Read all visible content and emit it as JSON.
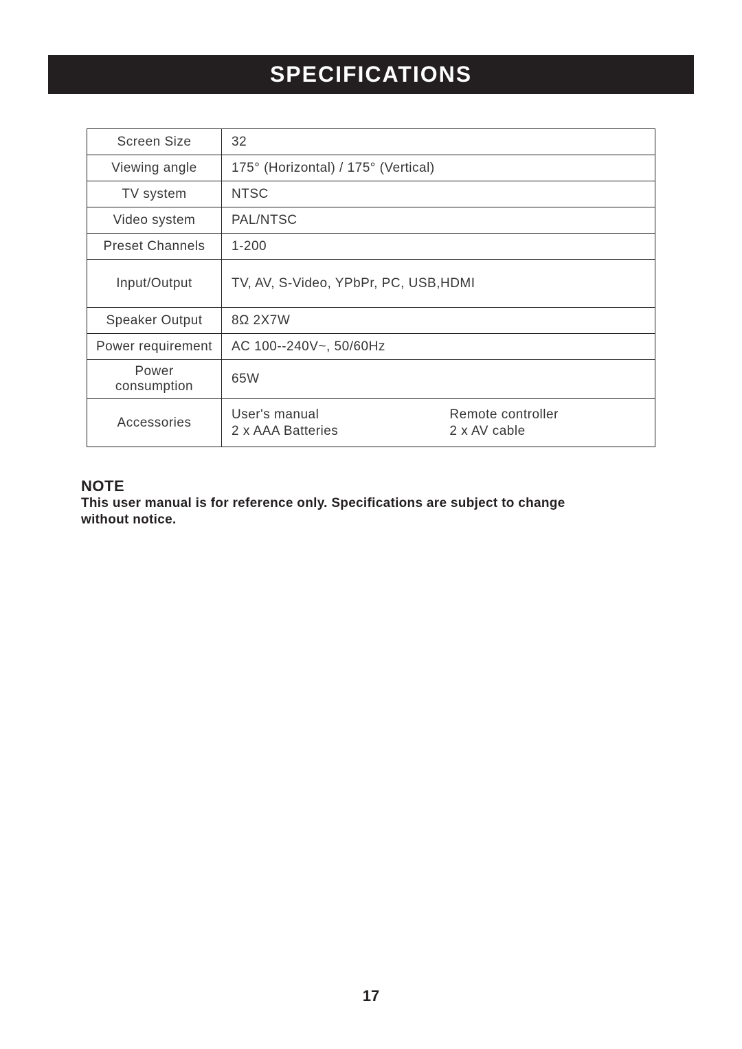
{
  "title": "SPECIFICATIONS",
  "table": {
    "border_color": "#231f20",
    "text_color": "#333333",
    "rows": [
      {
        "label": "Screen Size",
        "value": "32",
        "height": "normal"
      },
      {
        "label": "Viewing angle",
        "value": "175° (Horizontal) / 175° (Vertical)",
        "height": "normal"
      },
      {
        "label": "TV system",
        "value": "NTSC",
        "height": "normal"
      },
      {
        "label": "Video system",
        "value": "PAL/NTSC",
        "height": "normal"
      },
      {
        "label": "Preset Channels",
        "value": "1-200",
        "height": "normal"
      },
      {
        "label": "Input/Output",
        "value": "TV, AV, S-Video, YPbPr, PC, USB,HDMI",
        "height": "tall"
      },
      {
        "label": "Speaker Output",
        "value": "8Ω  2X7W",
        "height": "normal"
      },
      {
        "label": "Power requirement",
        "value": "AC 100--240V~, 50/60Hz",
        "height": "normal"
      },
      {
        "label": "Power consumption",
        "value": "65W",
        "height": "normal"
      }
    ],
    "accessories": {
      "label": "Accessories",
      "items": [
        "User's manual",
        "Remote controller",
        "2 x AAA Batteries",
        "2 x AV cable"
      ]
    }
  },
  "note": {
    "heading": "NOTE",
    "body_line1": "This user manual is for reference only. Specifications are subject to change",
    "body_line2": " without  notice."
  },
  "page_number": "17",
  "colors": {
    "title_bg": "#231f20",
    "title_fg": "#ffffff",
    "page_bg": "#ffffff",
    "text": "#231f20"
  }
}
